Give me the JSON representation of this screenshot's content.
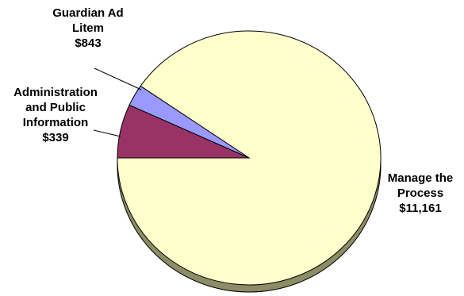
{
  "chart_data": {
    "type": "pie",
    "title": "",
    "slices": [
      {
        "label_lines": [
          "Manage the",
          "Process"
        ],
        "value": 11161,
        "value_label": "$11,161",
        "color": "#ffffcc"
      },
      {
        "label_lines": [
          "Administration",
          "and Public",
          "Information"
        ],
        "value": 339,
        "value_label": "$339",
        "color": "#9999ff"
      },
      {
        "label_lines": [
          "Guardian Ad",
          "Litem"
        ],
        "value": 843,
        "value_label": "$843",
        "color": "#993366"
      }
    ],
    "legend": "none",
    "style": "3d-tilted"
  }
}
